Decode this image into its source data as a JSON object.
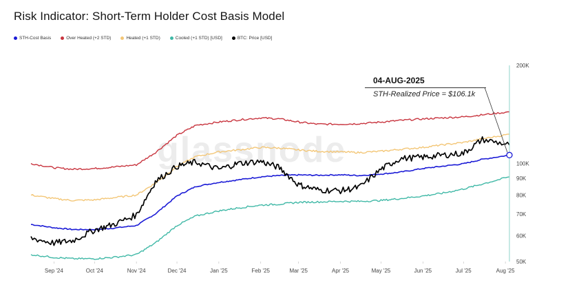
{
  "title": "Risk Indicator: Short-Term Holder Cost Basis Model",
  "watermark": "glassnode",
  "annotation": {
    "date": "04-AUG-2025",
    "label": "STH-Realized Price = $106.1k"
  },
  "colors": {
    "sth": "#1a1ad6",
    "overheated": "#c8343e",
    "heated": "#f3c676",
    "cooled": "#3fb8a6",
    "price": "#000000",
    "axis_accent": "#8fd3c8"
  },
  "chart_data": {
    "type": "line",
    "title": "Risk Indicator: Short-Term Holder Cost Basis Model",
    "y_scale": "log",
    "ylim": [
      50000,
      200000
    ],
    "y_ticks": [
      {
        "value": 200000,
        "label": "200K"
      },
      {
        "value": 100000,
        "label": "100K"
      },
      {
        "value": 90000,
        "label": "90K"
      },
      {
        "value": 80000,
        "label": "80K"
      },
      {
        "value": 70000,
        "label": "70K"
      },
      {
        "value": 60000,
        "label": "60K"
      },
      {
        "value": 50000,
        "label": "50K"
      }
    ],
    "x_ticks": [
      "Sep '24",
      "Oct '24",
      "Nov '24",
      "Dec '24",
      "Jan '25",
      "Feb '25",
      "Mar '25",
      "Apr '25",
      "May '25",
      "Jun '25",
      "Jul '25",
      "Aug '25"
    ],
    "x": [
      "2024-08-15",
      "2024-09-01",
      "2024-09-15",
      "2024-10-01",
      "2024-10-15",
      "2024-11-01",
      "2024-11-15",
      "2024-12-01",
      "2024-12-15",
      "2025-01-01",
      "2025-01-15",
      "2025-02-01",
      "2025-02-15",
      "2025-03-01",
      "2025-03-15",
      "2025-04-01",
      "2025-04-15",
      "2025-05-01",
      "2025-05-15",
      "2025-06-01",
      "2025-06-15",
      "2025-07-01",
      "2025-07-15",
      "2025-08-04"
    ],
    "series": [
      {
        "name": "STH-Cost Basis",
        "color": "#1a1ad6",
        "values": [
          65000,
          63500,
          62700,
          62700,
          63300,
          64500,
          70000,
          79500,
          85000,
          87500,
          89000,
          91000,
          91800,
          92200,
          92000,
          92300,
          91800,
          92800,
          94000,
          96500,
          98000,
          99800,
          103000,
          106100
        ]
      },
      {
        "name": "Over Heated (+2 STD)",
        "color": "#c8343e",
        "values": [
          100000,
          97000,
          96000,
          96500,
          97500,
          99000,
          108000,
          122000,
          131000,
          134000,
          136000,
          138000,
          137000,
          134000,
          132000,
          132000,
          132500,
          134000,
          135500,
          137000,
          138000,
          139000,
          141000,
          144000
        ]
      },
      {
        "name": "Heated (+1 STD)",
        "color": "#f3c676",
        "values": [
          80000,
          78000,
          77000,
          77300,
          78500,
          80000,
          87000,
          98000,
          105000,
          108500,
          110000,
          112000,
          111500,
          110000,
          109000,
          108500,
          108000,
          109000,
          110500,
          112000,
          114000,
          116000,
          119000,
          123000
        ]
      },
      {
        "name": "Cooled (+1 STD) [USD]",
        "color": "#3fb8a6",
        "values": [
          52500,
          51500,
          51000,
          51000,
          51500,
          52500,
          57000,
          64500,
          69000,
          71500,
          73000,
          74500,
          75000,
          76000,
          76200,
          76500,
          76500,
          77000,
          78000,
          79500,
          81000,
          83500,
          86500,
          91000
        ]
      },
      {
        "name": "BTC: Price [USD]",
        "color": "#000000",
        "values": [
          59000,
          57000,
          58000,
          62500,
          65000,
          69500,
          88000,
          98000,
          101000,
          96000,
          100000,
          101500,
          97000,
          86000,
          83000,
          82500,
          84500,
          96000,
          103500,
          104500,
          106000,
          107500,
          118500,
          114000
        ]
      }
    ]
  }
}
